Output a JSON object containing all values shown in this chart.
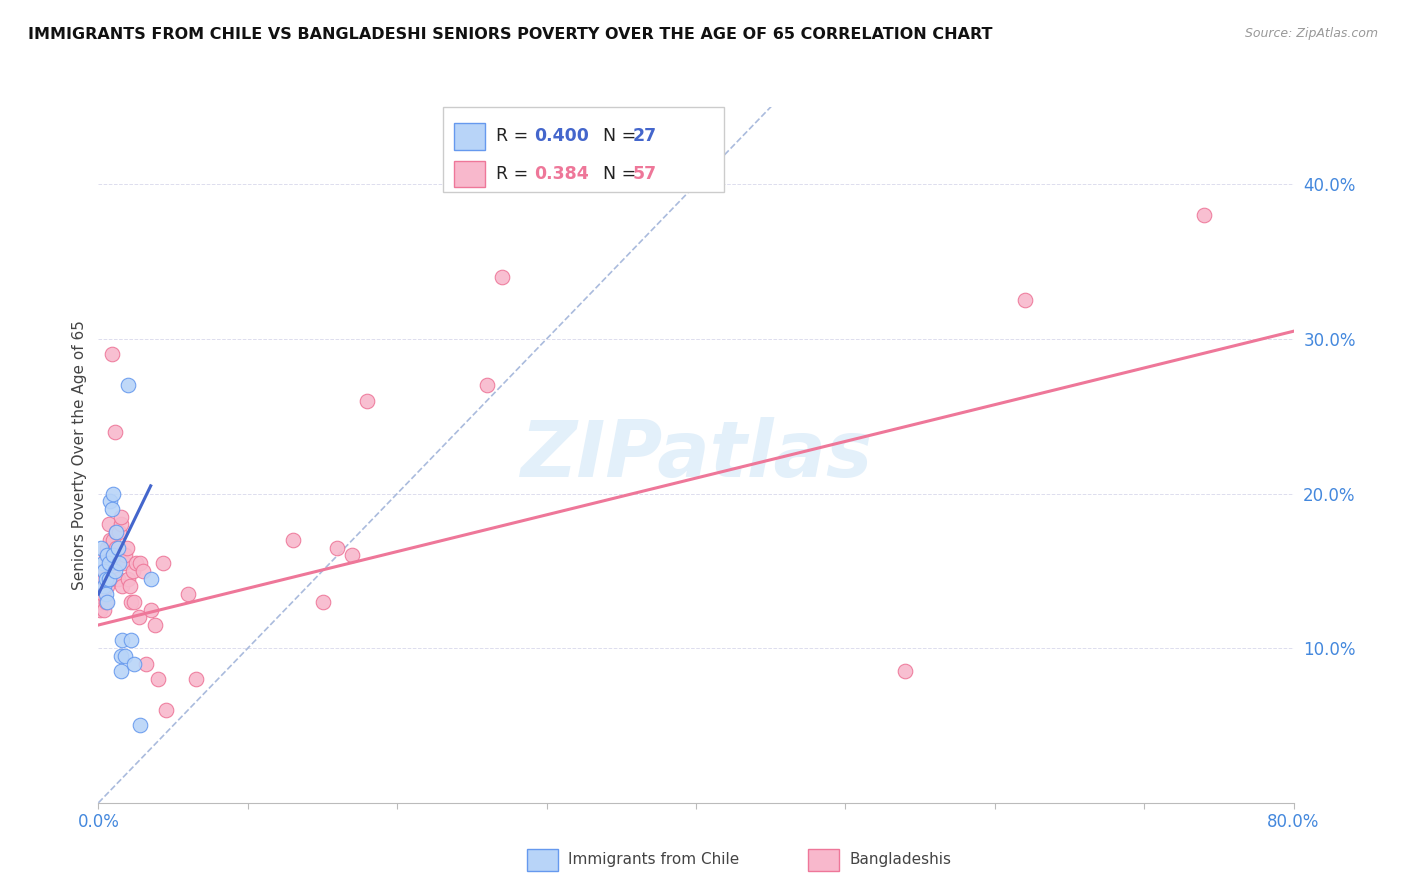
{
  "title": "IMMIGRANTS FROM CHILE VS BANGLADESHI SENIORS POVERTY OVER THE AGE OF 65 CORRELATION CHART",
  "source": "Source: ZipAtlas.com",
  "ylabel": "Seniors Poverty Over the Age of 65",
  "ytick_labels": [
    "10.0%",
    "20.0%",
    "30.0%",
    "40.0%"
  ],
  "ytick_values": [
    0.1,
    0.2,
    0.3,
    0.4
  ],
  "xlim": [
    0.0,
    0.8
  ],
  "ylim": [
    0.0,
    0.45
  ],
  "watermark": "ZIPatlas",
  "chile_color": "#b8d4f8",
  "chile_edge_color": "#6699ee",
  "bangla_color": "#f8b8cc",
  "bangla_edge_color": "#ee7799",
  "trendline_chile_color": "#4466cc",
  "trendline_bangla_color": "#ee7799",
  "diagonal_color": "#aabbdd",
  "chile_R": "0.400",
  "chile_N": "27",
  "bangla_R": "0.384",
  "bangla_N": "57",
  "legend_text_color": "#222222",
  "legend_number_color_chile": "#4466cc",
  "legend_number_color_bangla": "#ee7799",
  "ytick_color": "#4488dd",
  "xtick_color": "#4488dd",
  "chile_x": [
    0.002,
    0.003,
    0.004,
    0.004,
    0.005,
    0.005,
    0.006,
    0.006,
    0.007,
    0.007,
    0.008,
    0.009,
    0.01,
    0.01,
    0.011,
    0.012,
    0.013,
    0.014,
    0.015,
    0.015,
    0.016,
    0.018,
    0.02,
    0.022,
    0.024,
    0.028,
    0.035
  ],
  "chile_y": [
    0.165,
    0.155,
    0.14,
    0.15,
    0.135,
    0.145,
    0.13,
    0.16,
    0.145,
    0.155,
    0.195,
    0.19,
    0.2,
    0.16,
    0.15,
    0.175,
    0.165,
    0.155,
    0.095,
    0.085,
    0.105,
    0.095,
    0.27,
    0.105,
    0.09,
    0.05,
    0.145
  ],
  "bangla_x": [
    0.001,
    0.002,
    0.003,
    0.003,
    0.004,
    0.004,
    0.005,
    0.005,
    0.006,
    0.006,
    0.007,
    0.007,
    0.008,
    0.008,
    0.009,
    0.009,
    0.01,
    0.01,
    0.011,
    0.011,
    0.012,
    0.012,
    0.013,
    0.014,
    0.015,
    0.015,
    0.016,
    0.017,
    0.018,
    0.019,
    0.02,
    0.021,
    0.022,
    0.023,
    0.024,
    0.025,
    0.027,
    0.028,
    0.03,
    0.032,
    0.035,
    0.038,
    0.04,
    0.043,
    0.045,
    0.06,
    0.065,
    0.13,
    0.15,
    0.16,
    0.17,
    0.18,
    0.26,
    0.27,
    0.54,
    0.62,
    0.74
  ],
  "bangla_y": [
    0.125,
    0.13,
    0.135,
    0.15,
    0.125,
    0.145,
    0.13,
    0.16,
    0.14,
    0.165,
    0.155,
    0.18,
    0.145,
    0.17,
    0.29,
    0.155,
    0.155,
    0.17,
    0.16,
    0.24,
    0.165,
    0.175,
    0.145,
    0.175,
    0.18,
    0.185,
    0.14,
    0.155,
    0.16,
    0.165,
    0.145,
    0.14,
    0.13,
    0.15,
    0.13,
    0.155,
    0.12,
    0.155,
    0.15,
    0.09,
    0.125,
    0.115,
    0.08,
    0.155,
    0.06,
    0.135,
    0.08,
    0.17,
    0.13,
    0.165,
    0.16,
    0.26,
    0.27,
    0.34,
    0.085,
    0.325,
    0.38
  ],
  "chile_trend_x": [
    0.0,
    0.035
  ],
  "chile_trend_y": [
    0.135,
    0.205
  ],
  "bangla_trend_x": [
    0.0,
    0.8
  ],
  "bangla_trend_y": [
    0.115,
    0.305
  ]
}
